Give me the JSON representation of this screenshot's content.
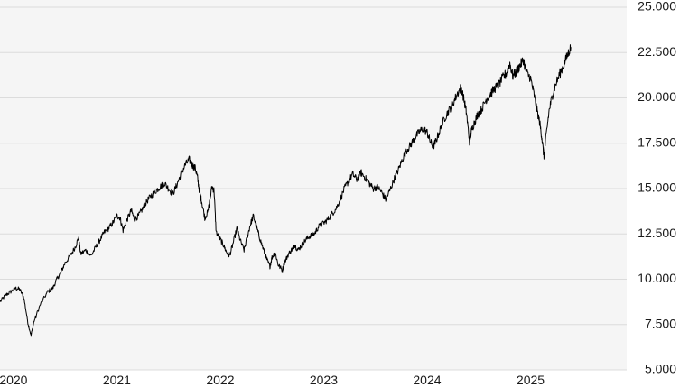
{
  "chart_data": {
    "type": "line",
    "title": "",
    "xlabel": "",
    "ylabel": "",
    "ylim": [
      5000,
      25000
    ],
    "y_axis_position": "right",
    "grid": "horizontal",
    "legend": "none",
    "y_ticks": [
      {
        "value": 5000,
        "label": "5.000"
      },
      {
        "value": 7500,
        "label": "7.500"
      },
      {
        "value": 10000,
        "label": "10.000"
      },
      {
        "value": 12500,
        "label": "12.500"
      },
      {
        "value": 15000,
        "label": "15.000"
      },
      {
        "value": 17500,
        "label": "17.500"
      },
      {
        "value": 20000,
        "label": "20.000"
      },
      {
        "value": 22500,
        "label": "22.500"
      },
      {
        "value": 25000,
        "label": "25.000"
      }
    ],
    "x_ticks": [
      {
        "value": 2020.0,
        "label": "2020"
      },
      {
        "value": 2021.0,
        "label": "2021"
      },
      {
        "value": 2022.0,
        "label": "2022"
      },
      {
        "value": 2023.0,
        "label": "2023"
      },
      {
        "value": 2024.0,
        "label": "2024"
      },
      {
        "value": 2025.0,
        "label": "2025"
      }
    ],
    "series": [
      {
        "color": "#000000",
        "points": [
          [
            2019.87,
            8750
          ],
          [
            2019.92,
            9100
          ],
          [
            2019.97,
            9300
          ],
          [
            2020.02,
            9500
          ],
          [
            2020.06,
            9450
          ],
          [
            2020.1,
            9000
          ],
          [
            2020.14,
            7600
          ],
          [
            2020.17,
            6900
          ],
          [
            2020.2,
            7700
          ],
          [
            2020.26,
            8600
          ],
          [
            2020.33,
            9300
          ],
          [
            2020.38,
            9500
          ],
          [
            2020.42,
            10000
          ],
          [
            2020.46,
            10400
          ],
          [
            2020.5,
            10900
          ],
          [
            2020.55,
            11300
          ],
          [
            2020.6,
            11800
          ],
          [
            2020.63,
            12300
          ],
          [
            2020.65,
            11400
          ],
          [
            2020.7,
            11600
          ],
          [
            2020.75,
            11300
          ],
          [
            2020.8,
            11800
          ],
          [
            2020.84,
            12200
          ],
          [
            2020.88,
            12600
          ],
          [
            2020.92,
            12800
          ],
          [
            2020.96,
            13100
          ],
          [
            2021.0,
            13500
          ],
          [
            2021.03,
            13400
          ],
          [
            2021.06,
            12700
          ],
          [
            2021.1,
            13300
          ],
          [
            2021.14,
            13800
          ],
          [
            2021.17,
            13300
          ],
          [
            2021.21,
            13500
          ],
          [
            2021.25,
            13900
          ],
          [
            2021.29,
            14300
          ],
          [
            2021.33,
            14600
          ],
          [
            2021.38,
            14900
          ],
          [
            2021.42,
            15100
          ],
          [
            2021.46,
            15300
          ],
          [
            2021.5,
            15000
          ],
          [
            2021.54,
            14700
          ],
          [
            2021.58,
            15200
          ],
          [
            2021.62,
            15800
          ],
          [
            2021.66,
            16300
          ],
          [
            2021.7,
            16600
          ],
          [
            2021.73,
            16300
          ],
          [
            2021.76,
            16100
          ],
          [
            2021.78,
            15600
          ],
          [
            2021.8,
            14800
          ],
          [
            2021.82,
            14300
          ],
          [
            2021.85,
            13400
          ],
          [
            2021.88,
            13700
          ],
          [
            2021.92,
            15100
          ],
          [
            2021.94,
            14900
          ],
          [
            2021.96,
            12600
          ],
          [
            2022.0,
            12200
          ],
          [
            2022.03,
            11900
          ],
          [
            2022.06,
            11500
          ],
          [
            2022.09,
            11300
          ],
          [
            2022.12,
            11900
          ],
          [
            2022.16,
            12800
          ],
          [
            2022.19,
            12200
          ],
          [
            2022.23,
            11600
          ],
          [
            2022.26,
            12300
          ],
          [
            2022.29,
            13000
          ],
          [
            2022.32,
            13500
          ],
          [
            2022.35,
            12900
          ],
          [
            2022.38,
            12300
          ],
          [
            2022.42,
            11600
          ],
          [
            2022.45,
            11100
          ],
          [
            2022.48,
            10700
          ],
          [
            2022.5,
            11200
          ],
          [
            2022.53,
            11500
          ],
          [
            2022.56,
            10800
          ],
          [
            2022.6,
            10500
          ],
          [
            2022.62,
            10900
          ],
          [
            2022.66,
            11400
          ],
          [
            2022.7,
            11700
          ],
          [
            2022.72,
            11900
          ],
          [
            2022.75,
            11600
          ],
          [
            2022.79,
            11900
          ],
          [
            2022.83,
            12200
          ],
          [
            2022.87,
            12400
          ],
          [
            2022.91,
            12500
          ],
          [
            2022.95,
            12900
          ],
          [
            2023.0,
            13100
          ],
          [
            2023.04,
            13300
          ],
          [
            2023.08,
            13600
          ],
          [
            2023.12,
            13900
          ],
          [
            2023.16,
            14400
          ],
          [
            2023.2,
            15000
          ],
          [
            2023.24,
            15400
          ],
          [
            2023.28,
            15800
          ],
          [
            2023.32,
            15500
          ],
          [
            2023.36,
            15900
          ],
          [
            2023.4,
            15600
          ],
          [
            2023.44,
            15300
          ],
          [
            2023.48,
            15000
          ],
          [
            2023.52,
            15100
          ],
          [
            2023.56,
            14800
          ],
          [
            2023.6,
            14400
          ],
          [
            2023.64,
            14900
          ],
          [
            2023.68,
            15500
          ],
          [
            2023.72,
            16000
          ],
          [
            2023.76,
            16600
          ],
          [
            2023.8,
            17100
          ],
          [
            2023.84,
            17400
          ],
          [
            2023.88,
            17800
          ],
          [
            2023.92,
            18100
          ],
          [
            2023.96,
            18300
          ],
          [
            2024.0,
            18100
          ],
          [
            2024.03,
            17600
          ],
          [
            2024.06,
            17300
          ],
          [
            2024.09,
            17700
          ],
          [
            2024.13,
            18300
          ],
          [
            2024.17,
            18900
          ],
          [
            2024.21,
            19300
          ],
          [
            2024.25,
            19700
          ],
          [
            2024.29,
            20200
          ],
          [
            2024.33,
            20600
          ],
          [
            2024.36,
            19800
          ],
          [
            2024.38,
            19200
          ],
          [
            2024.41,
            17600
          ],
          [
            2024.43,
            18200
          ],
          [
            2024.46,
            18700
          ],
          [
            2024.49,
            19100
          ],
          [
            2024.53,
            19400
          ],
          [
            2024.57,
            19900
          ],
          [
            2024.61,
            20200
          ],
          [
            2024.65,
            20500
          ],
          [
            2024.69,
            20700
          ],
          [
            2024.73,
            21100
          ],
          [
            2024.77,
            21400
          ],
          [
            2024.8,
            21900
          ],
          [
            2024.83,
            21200
          ],
          [
            2024.87,
            21500
          ],
          [
            2024.9,
            21800
          ],
          [
            2024.93,
            22100
          ],
          [
            2024.96,
            21400
          ],
          [
            2025.0,
            21100
          ],
          [
            2025.03,
            20300
          ],
          [
            2025.06,
            19400
          ],
          [
            2025.09,
            18600
          ],
          [
            2025.11,
            17800
          ],
          [
            2025.13,
            16700
          ],
          [
            2025.15,
            17900
          ],
          [
            2025.18,
            19300
          ],
          [
            2025.21,
            20100
          ],
          [
            2025.24,
            20700
          ],
          [
            2025.28,
            21300
          ],
          [
            2025.32,
            21800
          ],
          [
            2025.36,
            22400
          ],
          [
            2025.39,
            22800
          ]
        ]
      }
    ]
  }
}
